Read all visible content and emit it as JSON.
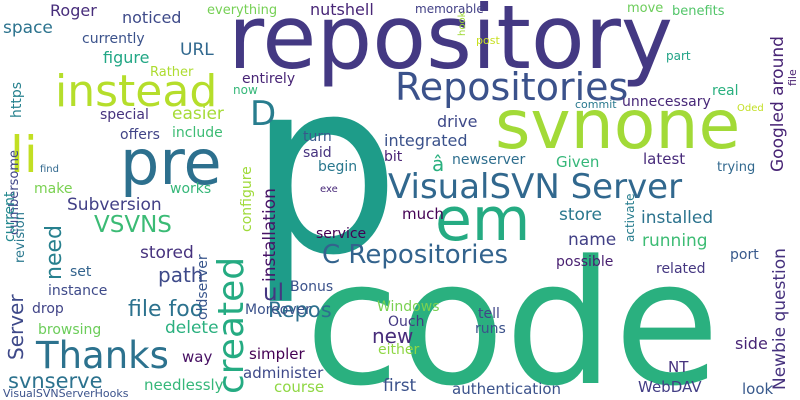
{
  "words": [
    {
      "text": "code",
      "color": "#2ab07f"
    },
    {
      "text": "p",
      "color": "#1e9c89"
    },
    {
      "text": "repository",
      "color": "#443983"
    },
    {
      "text": "svnone",
      "color": "#a2da37"
    },
    {
      "text": "pre",
      "color": "#2d708e"
    },
    {
      "text": "em",
      "color": "#25ab82"
    },
    {
      "text": "instead",
      "color": "#b5de2b"
    },
    {
      "text": "li",
      "color": "#c2df23"
    },
    {
      "text": "Repositories",
      "color": "#3b528b"
    },
    {
      "text": "VisualSVN Server",
      "color": "#31688e"
    },
    {
      "text": "Thanks",
      "color": "#2c728e"
    },
    {
      "text": "created",
      "color": "#25ab82"
    },
    {
      "text": "C Repositories",
      "color": "#33638d"
    },
    {
      "text": "D",
      "color": "#287d8e"
    },
    {
      "text": "Roger",
      "color": "#472d7b"
    },
    {
      "text": "noticed",
      "color": "#3e4a89"
    },
    {
      "text": "everything",
      "color": "#75d054"
    },
    {
      "text": "nutshell",
      "color": "#482677"
    },
    {
      "text": "memorable",
      "color": "#424086"
    },
    {
      "text": "move",
      "color": "#6ccd5a"
    },
    {
      "text": "benefits",
      "color": "#52c569"
    },
    {
      "text": "space",
      "color": "#2c738e"
    },
    {
      "text": "currently",
      "color": "#3b528b"
    },
    {
      "text": "figure",
      "color": "#22a785"
    },
    {
      "text": "URL",
      "color": "#31688e"
    },
    {
      "text": "Rather",
      "color": "#addc30"
    },
    {
      "text": "entirely",
      "color": "#482576"
    },
    {
      "text": "now",
      "color": "#35b779"
    },
    {
      "text": "easier",
      "color": "#a5db36"
    },
    {
      "text": "special",
      "color": "#46337e"
    },
    {
      "text": "include",
      "color": "#3dbc74"
    },
    {
      "text": "offers",
      "color": "#414487"
    },
    {
      "text": "drive",
      "color": "#3e4989"
    },
    {
      "text": "integrated",
      "color": "#3b528b"
    },
    {
      "text": "turn",
      "color": "#38588c"
    },
    {
      "text": "said",
      "color": "#46327e"
    },
    {
      "text": "begin",
      "color": "#2a788e"
    },
    {
      "text": "bit",
      "color": "#482173"
    },
    {
      "text": "newserver",
      "color": "#2e6e8e"
    },
    {
      "text": "Given",
      "color": "#35b779"
    },
    {
      "text": "latest",
      "color": "#472a7a"
    },
    {
      "text": "real",
      "color": "#2ab07f"
    },
    {
      "text": "unnecessary",
      "color": "#482878"
    },
    {
      "text": "trying",
      "color": "#31688e"
    },
    {
      "text": "make",
      "color": "#7ad151"
    },
    {
      "text": "works",
      "color": "#35b779"
    },
    {
      "text": "Subversion",
      "color": "#424086"
    },
    {
      "text": "VSVNS",
      "color": "#3bbb75"
    },
    {
      "text": "much",
      "color": "#440154"
    },
    {
      "text": "store",
      "color": "#2a788e"
    },
    {
      "text": "installed",
      "color": "#2c738e"
    },
    {
      "text": "name",
      "color": "#424086"
    },
    {
      "text": "stored",
      "color": "#46327e"
    },
    {
      "text": "path",
      "color": "#3e4a89"
    },
    {
      "text": "service",
      "color": "#440154"
    },
    {
      "text": "running",
      "color": "#3dbc74"
    },
    {
      "text": "possible",
      "color": "#481f70"
    },
    {
      "text": "related",
      "color": "#453781"
    },
    {
      "text": "port",
      "color": "#38598c"
    },
    {
      "text": "set",
      "color": "#33638d"
    },
    {
      "text": "instance",
      "color": "#3e4a89"
    },
    {
      "text": "file foo",
      "color": "#2c728e"
    },
    {
      "text": "ul",
      "color": "#453781"
    },
    {
      "text": "Bonus",
      "color": "#3b528b"
    },
    {
      "text": "drop",
      "color": "#414487"
    },
    {
      "text": "browsing",
      "color": "#6ccd5a"
    },
    {
      "text": "delete",
      "color": "#2ab07f"
    },
    {
      "text": "Repos",
      "color": "#2d708e"
    },
    {
      "text": "Windows",
      "color": "#7ad151"
    },
    {
      "text": "tell",
      "color": "#404688"
    },
    {
      "text": "Moreover",
      "color": "#3b528b"
    },
    {
      "text": "Ouch",
      "color": "#443983"
    },
    {
      "text": "runs",
      "color": "#3b528b"
    },
    {
      "text": "new",
      "color": "#472c7a"
    },
    {
      "text": "either",
      "color": "#8fd744"
    },
    {
      "text": "simpler",
      "color": "#440154"
    },
    {
      "text": "way",
      "color": "#471063"
    },
    {
      "text": "svnserve",
      "color": "#2c728e"
    },
    {
      "text": "administer",
      "color": "#3e4989"
    },
    {
      "text": "course",
      "color": "#8fd744"
    },
    {
      "text": "needlessly",
      "color": "#35b779"
    },
    {
      "text": "first",
      "color": "#3b528b"
    },
    {
      "text": "authentication",
      "color": "#3b528b"
    },
    {
      "text": "NT",
      "color": "#46327e"
    },
    {
      "text": "side",
      "color": "#482576"
    },
    {
      "text": "WebDAV",
      "color": "#433e85"
    },
    {
      "text": "look",
      "color": "#38598c"
    },
    {
      "text": "VisualSVNServerHooks",
      "color": "#3b528b"
    },
    {
      "text": "â",
      "color": "#2ab07f"
    },
    {
      "text": "post",
      "color": "#c8e020"
    },
    {
      "text": "part",
      "color": "#20a386"
    },
    {
      "text": "commit",
      "color": "#29798e"
    },
    {
      "text": "Oded",
      "color": "#c2df23"
    },
    {
      "text": "exe",
      "color": "#482979"
    },
    {
      "text": "find",
      "color": "#31688e"
    },
    {
      "text": "hook",
      "color": "#a0da39"
    },
    {
      "text": "https",
      "color": "#26818e"
    },
    {
      "text": "cumbersome",
      "color": "#404688"
    },
    {
      "text": "current",
      "color": "#23888e"
    },
    {
      "text": "revision",
      "color": "#2a788e"
    },
    {
      "text": "need",
      "color": "#27808e"
    },
    {
      "text": "Server",
      "color": "#3e4989"
    },
    {
      "text": "installation",
      "color": "#481467"
    },
    {
      "text": "configure",
      "color": "#9fda3a"
    },
    {
      "text": "oldserver",
      "color": "#39568c"
    },
    {
      "text": "activate",
      "color": "#287d8e"
    },
    {
      "text": "Newbie question",
      "color": "#46327e"
    },
    {
      "text": "Googled around",
      "color": "#482475"
    },
    {
      "text": "file",
      "color": "#481f70"
    }
  ]
}
